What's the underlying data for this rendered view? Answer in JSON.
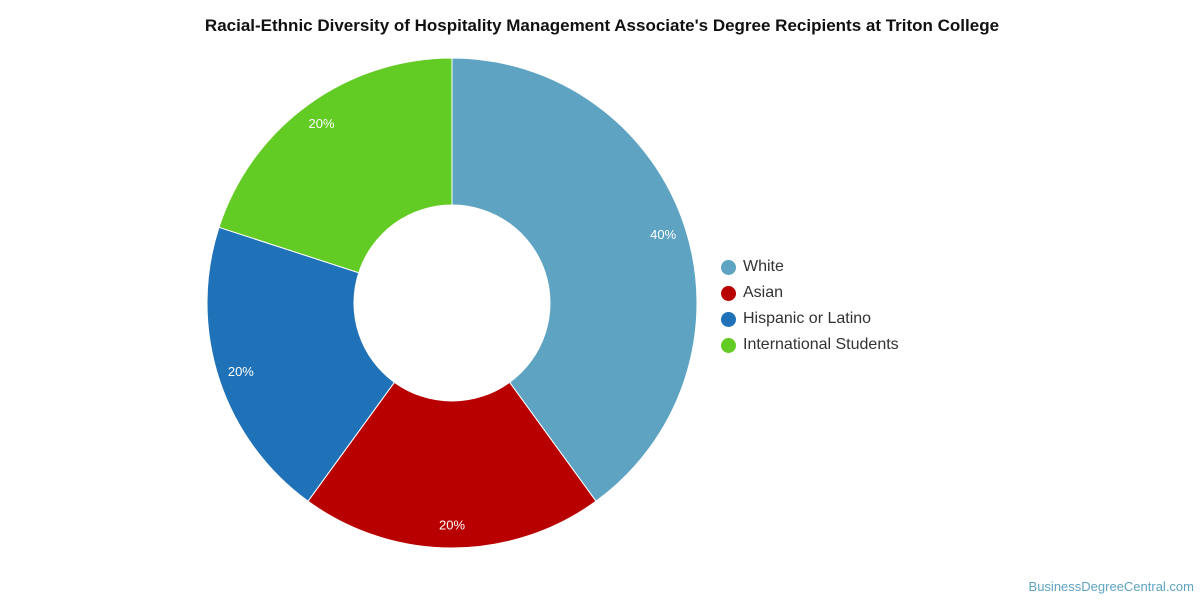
{
  "chart_data": {
    "type": "pie",
    "donut": true,
    "title": "Racial-Ethnic Diversity of Hospitality Management Associate's Degree Recipients at Triton College",
    "categories": [
      "White",
      "Asian",
      "Hispanic or Latino",
      "International Students"
    ],
    "values": [
      40,
      20,
      20,
      20
    ],
    "labels": [
      "40%",
      "20%",
      "20%",
      "20%"
    ],
    "colors": [
      "#5ea3c2",
      "#b90000",
      "#1f72b8",
      "#62cc24"
    ],
    "legend": "right"
  },
  "credit": "BusinessDegreeCentral.com"
}
